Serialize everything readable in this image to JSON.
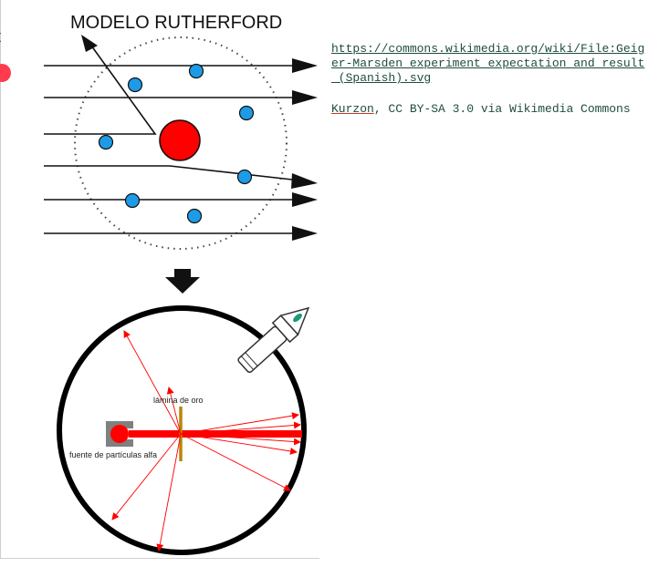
{
  "figure": {
    "title": "MODELO RUTHERFORD",
    "label_gold_foil": "lámina de oro",
    "label_source": "fuente de partículas alfa",
    "colors": {
      "nucleus": "#ff0000",
      "electron": "#1e9be6",
      "foil": "#b8860b",
      "source_box": "#808080"
    }
  },
  "attribution": {
    "link": "https://commons.wikimedia.org/wiki/File:Geiger-Marsden_experiment_expectation_and_result_(Spanish).svg",
    "author": "Kurzon",
    "license": ", CC BY-SA 3.0 via Wikimedia Commons"
  }
}
